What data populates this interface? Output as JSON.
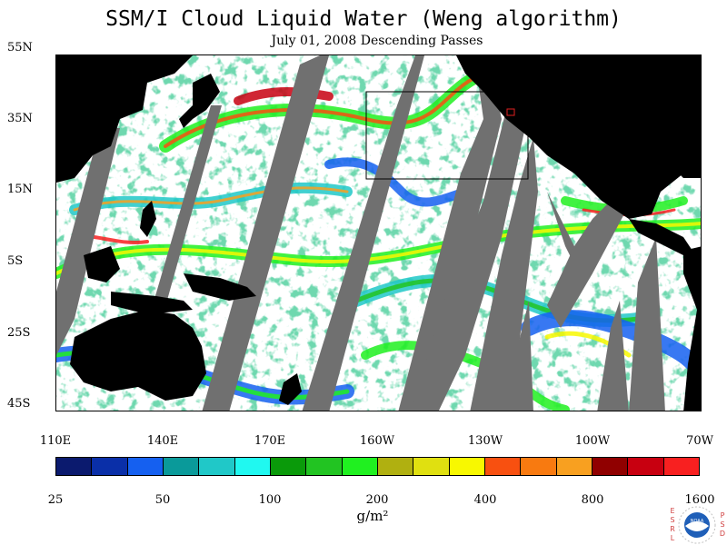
{
  "title": "SSM/I Cloud Liquid Water (Weng algorithm)",
  "subtitle": "July 01, 2008  Descending Passes",
  "lat_labels": [
    "55N",
    "35N",
    "15N",
    "5S",
    "25S",
    "45S"
  ],
  "lon_labels": [
    "110E",
    "140E",
    "170E",
    "160W",
    "130W",
    "100W",
    "70W"
  ],
  "colorbar": {
    "colors": [
      "#0b1a6e",
      "#0a2fa8",
      "#1560f0",
      "#0a9a9a",
      "#20c8c8",
      "#20f8f0",
      "#0a9a0a",
      "#22c422",
      "#20f020",
      "#b0b010",
      "#e0e010",
      "#f8f800",
      "#f85010",
      "#f87a10",
      "#f8a020",
      "#900000",
      "#c80010",
      "#f82020"
    ],
    "tick_labels": [
      "25",
      "50",
      "100",
      "200",
      "400",
      "800",
      "1600"
    ],
    "units": "g/m²"
  },
  "logo": {
    "center_text": "NOAA",
    "left_letters": [
      "E",
      "S",
      "R",
      "L"
    ],
    "right_letters": [
      "P",
      "S",
      "D"
    ]
  },
  "colors": {
    "land": "#000000",
    "missing_swath": "#707070",
    "clear": "#ffffff"
  }
}
